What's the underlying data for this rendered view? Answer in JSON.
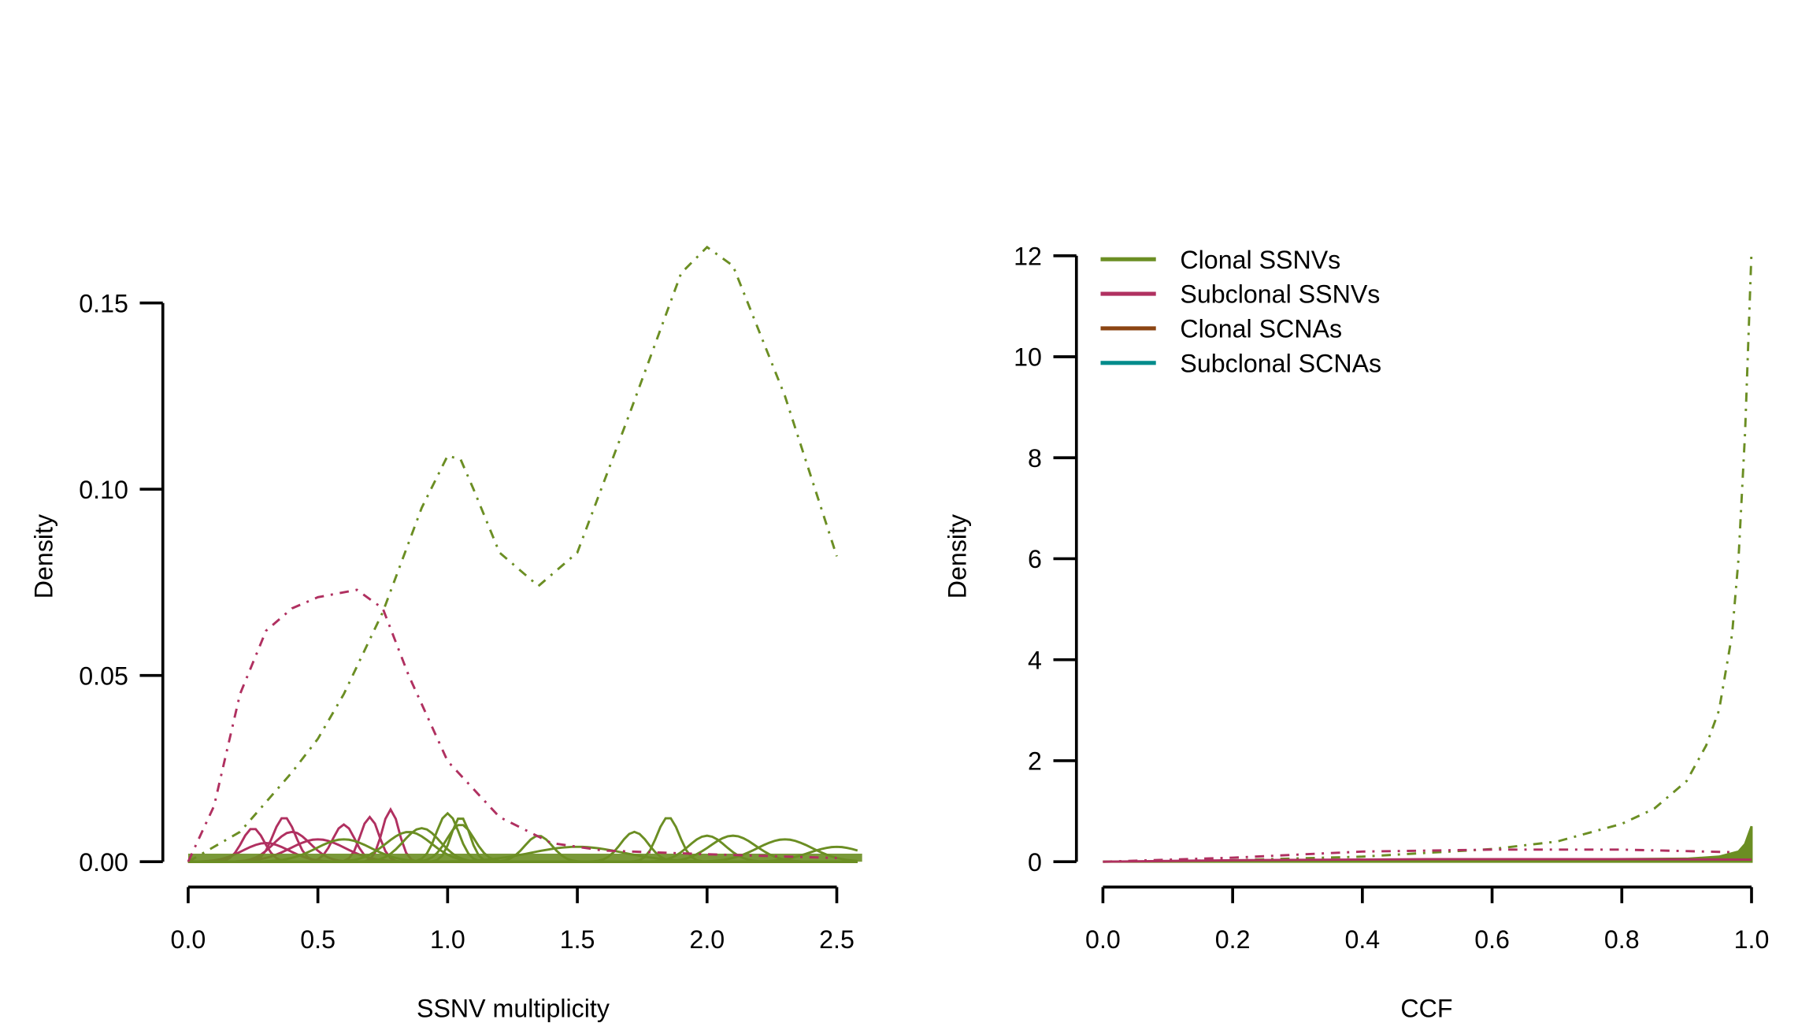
{
  "colors": {
    "clonal_ssnv": "#6b8e23",
    "subclonal_ssnv": "#b03060",
    "clonal_scna": "#8b4513",
    "subclonal_scna": "#008b8b"
  },
  "chart_data": [
    {
      "type": "line",
      "title": "",
      "xlabel": "SSNV multiplicity",
      "ylabel": "Density",
      "xlim": [
        0,
        2.6
      ],
      "ylim": [
        0,
        0.15
      ],
      "xticks": [
        "0.0",
        "0.5",
        "1.0",
        "1.5",
        "2.0",
        "2.5"
      ],
      "yticks": [
        "0.00",
        "0.05",
        "0.10",
        "0.15"
      ],
      "series": [
        {
          "name": "Clonal SSNVs (aggregate)",
          "style": "dashdot",
          "color_key": "clonal_ssnv",
          "x": [
            0,
            0.2,
            0.4,
            0.5,
            0.6,
            0.75,
            0.9,
            1.0,
            1.05,
            1.1,
            1.2,
            1.35,
            1.5,
            1.7,
            1.9,
            2.0,
            2.1,
            2.3,
            2.5
          ],
          "y": [
            0,
            0.008,
            0.024,
            0.033,
            0.045,
            0.067,
            0.095,
            0.109,
            0.108,
            0.1,
            0.083,
            0.074,
            0.083,
            0.12,
            0.158,
            0.165,
            0.16,
            0.125,
            0.082
          ]
        },
        {
          "name": "Subclonal SSNVs (aggregate)",
          "style": "dashdot",
          "color_key": "subclonal_ssnv",
          "x": [
            0,
            0.1,
            0.2,
            0.3,
            0.4,
            0.5,
            0.65,
            0.75,
            0.85,
            1.0,
            1.2,
            1.4,
            1.6,
            2.0,
            2.5
          ],
          "y": [
            0,
            0.015,
            0.045,
            0.062,
            0.068,
            0.071,
            0.073,
            0.068,
            0.05,
            0.027,
            0.012,
            0.005,
            0.003,
            0.002,
            0.001
          ]
        }
      ],
      "sample_bumps": {
        "clonal": [
          [
            0.85,
            0.008,
            0.25
          ],
          [
            1.0,
            0.013,
            0.12
          ],
          [
            1.05,
            0.012,
            0.1
          ],
          [
            1.05,
            0.01,
            0.15
          ],
          [
            1.35,
            0.007,
            0.15
          ],
          [
            1.72,
            0.008,
            0.15
          ],
          [
            1.85,
            0.012,
            0.12
          ],
          [
            2.0,
            0.007,
            0.2
          ],
          [
            2.1,
            0.007,
            0.25
          ],
          [
            2.3,
            0.006,
            0.3
          ],
          [
            0.6,
            0.006,
            0.3
          ],
          [
            0.9,
            0.009,
            0.2
          ],
          [
            1.5,
            0.004,
            0.5
          ],
          [
            2.5,
            0.004,
            0.3
          ]
        ],
        "subclonal": [
          [
            0.25,
            0.009,
            0.12
          ],
          [
            0.37,
            0.012,
            0.12
          ],
          [
            0.6,
            0.01,
            0.12
          ],
          [
            0.7,
            0.012,
            0.1
          ],
          [
            0.78,
            0.014,
            0.09
          ],
          [
            0.4,
            0.008,
            0.2
          ],
          [
            0.5,
            0.006,
            0.3
          ],
          [
            0.3,
            0.005,
            0.25
          ]
        ]
      }
    },
    {
      "type": "line",
      "title": "",
      "xlabel": "CCF",
      "ylabel": "Density",
      "xlim": [
        0,
        1.0
      ],
      "ylim": [
        0,
        12
      ],
      "xticks": [
        "0.0",
        "0.2",
        "0.4",
        "0.6",
        "0.8",
        "1.0"
      ],
      "yticks": [
        "0",
        "2",
        "4",
        "6",
        "8",
        "10",
        "12"
      ],
      "legend": {
        "placement": "top-left",
        "entries": [
          {
            "label": "Clonal SSNVs",
            "color_key": "clonal_ssnv"
          },
          {
            "label": "Subclonal SSNVs",
            "color_key": "subclonal_ssnv"
          },
          {
            "label": "Clonal SCNAs",
            "color_key": "clonal_scna"
          },
          {
            "label": "Subclonal SCNAs",
            "color_key": "subclonal_scna"
          }
        ]
      },
      "series": [
        {
          "name": "Clonal SSNVs (aggregate)",
          "style": "dashdot",
          "color_key": "clonal_ssnv",
          "x": [
            0,
            0.2,
            0.4,
            0.6,
            0.7,
            0.8,
            0.85,
            0.9,
            0.93,
            0.95,
            0.97,
            0.98,
            0.99,
            1.0
          ],
          "y": [
            0,
            0.03,
            0.1,
            0.25,
            0.4,
            0.75,
            1.05,
            1.6,
            2.3,
            3.0,
            4.5,
            6.0,
            8.5,
            12.1
          ]
        },
        {
          "name": "Subclonal SSNVs (aggregate)",
          "style": "dashdot",
          "color_key": "subclonal_ssnv",
          "x": [
            0,
            0.2,
            0.4,
            0.6,
            0.8,
            1.0
          ],
          "y": [
            0,
            0.08,
            0.2,
            0.24,
            0.24,
            0.18
          ]
        },
        {
          "name": "Clonal SSNVs (samples)",
          "style": "solid-fill",
          "color_key": "clonal_ssnv",
          "x": [
            0,
            0.5,
            0.9,
            0.95,
            0.98,
            0.99,
            1.0
          ],
          "y": [
            0,
            0.03,
            0.06,
            0.1,
            0.2,
            0.35,
            0.7
          ]
        },
        {
          "name": "Subclonal SSNVs (samples)",
          "style": "solid",
          "color_key": "subclonal_ssnv",
          "x": [
            0,
            0.2,
            0.5,
            0.8,
            1.0
          ],
          "y": [
            0,
            0.03,
            0.05,
            0.05,
            0.04
          ]
        }
      ]
    }
  ]
}
